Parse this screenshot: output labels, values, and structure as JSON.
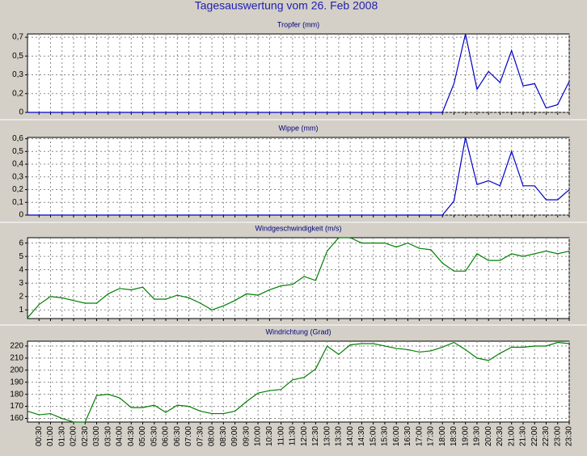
{
  "title": "Tagesauswertung vom 26. Feb 2008",
  "chart_data": [
    {
      "type": "line",
      "title": "Tropfer (mm)",
      "color": "#0000c8",
      "ylim": [
        0,
        0.71
      ],
      "yticks": [
        {
          "value": 0,
          "label": "0"
        },
        {
          "value": 0.17,
          "label": "0,2"
        },
        {
          "value": 0.34,
          "label": "0,3"
        },
        {
          "value": 0.51,
          "label": "0,5"
        },
        {
          "value": 0.68,
          "label": "0,7"
        }
      ],
      "values": [
        0,
        0,
        0,
        0,
        0,
        0,
        0,
        0,
        0,
        0,
        0,
        0,
        0,
        0,
        0,
        0,
        0,
        0,
        0,
        0,
        0,
        0,
        0,
        0,
        0,
        0,
        0,
        0,
        0,
        0,
        0,
        0,
        0,
        0,
        0,
        0,
        0,
        0.26,
        0.71,
        0.21,
        0.37,
        0.27,
        0.56,
        0.24,
        0.26,
        0.04,
        0.07,
        0.28
      ]
    },
    {
      "type": "line",
      "title": "Wippe (mm)",
      "color": "#0000c8",
      "ylim": [
        0,
        0.61
      ],
      "yticks": [
        {
          "value": 0,
          "label": "0"
        },
        {
          "value": 0.1,
          "label": "0,1"
        },
        {
          "value": 0.2,
          "label": "0,2"
        },
        {
          "value": 0.3,
          "label": "0,3"
        },
        {
          "value": 0.4,
          "label": "0,4"
        },
        {
          "value": 0.5,
          "label": "0,5"
        },
        {
          "value": 0.6,
          "label": "0,6"
        }
      ],
      "values": [
        0,
        0,
        0,
        0,
        0,
        0,
        0,
        0,
        0,
        0,
        0,
        0,
        0,
        0,
        0,
        0,
        0,
        0,
        0,
        0,
        0,
        0,
        0,
        0,
        0,
        0,
        0,
        0,
        0,
        0,
        0,
        0,
        0,
        0,
        0,
        0,
        0,
        0.11,
        0.61,
        0.24,
        0.27,
        0.23,
        0.5,
        0.23,
        0.23,
        0.12,
        0.12,
        0.2
      ]
    },
    {
      "type": "line",
      "title": "Windgeschwindigkeit (m/s)",
      "color": "#008000",
      "ylim": [
        0.35,
        6.4
      ],
      "yticks": [
        1,
        2,
        3,
        4,
        5,
        6
      ],
      "values": [
        0.4,
        1.4,
        2.0,
        1.9,
        1.7,
        1.5,
        1.5,
        2.2,
        2.6,
        2.5,
        2.7,
        1.8,
        1.8,
        2.1,
        1.9,
        1.5,
        1.0,
        1.3,
        1.7,
        2.2,
        2.1,
        2.5,
        2.8,
        2.9,
        3.5,
        3.2,
        5.4,
        6.4,
        6.4,
        6.0,
        6.0,
        6.0,
        5.7,
        6.0,
        5.6,
        5.5,
        4.5,
        3.9,
        3.9,
        5.2,
        4.7,
        4.7,
        5.2,
        5.0,
        5.2,
        5.4,
        5.2,
        5.4
      ]
    },
    {
      "type": "line",
      "title": "Windrichtung (Grad)",
      "color": "#008000",
      "ylim": [
        157,
        224
      ],
      "yticks": [
        160,
        170,
        180,
        190,
        200,
        210,
        220
      ],
      "categories": [
        null,
        "00:30",
        "01:00",
        "01:30",
        "02:00",
        "02:30",
        "03:00",
        "03:30",
        "04:00",
        "04:30",
        "05:00",
        "05:30",
        "06:00",
        "06:30",
        "07:00",
        "07:30",
        "08:00",
        "08:30",
        "09:00",
        "09:30",
        "10:00",
        "10:30",
        "11:00",
        "11:30",
        "12:00",
        "12:30",
        "13:00",
        "13:30",
        "14:00",
        "14:30",
        "15:00",
        "15:30",
        "16:00",
        "16:30",
        "17:00",
        "17:30",
        "18:00",
        "18:30",
        "19:00",
        "19:30",
        "20:00",
        "20:30",
        "21:00",
        "21:30",
        "22:00",
        "22:30",
        "23:00",
        "23:30"
      ],
      "values": [
        166,
        163,
        164,
        160,
        157,
        157,
        179,
        180,
        177,
        169,
        169,
        171,
        165,
        171,
        170,
        166,
        164,
        164,
        166,
        174,
        181,
        183,
        184,
        192,
        194,
        201,
        220,
        213,
        221,
        222,
        222,
        220,
        218,
        217,
        215,
        216,
        219,
        223,
        217,
        210,
        208,
        214,
        219,
        219,
        220,
        220,
        223,
        222
      ]
    }
  ]
}
